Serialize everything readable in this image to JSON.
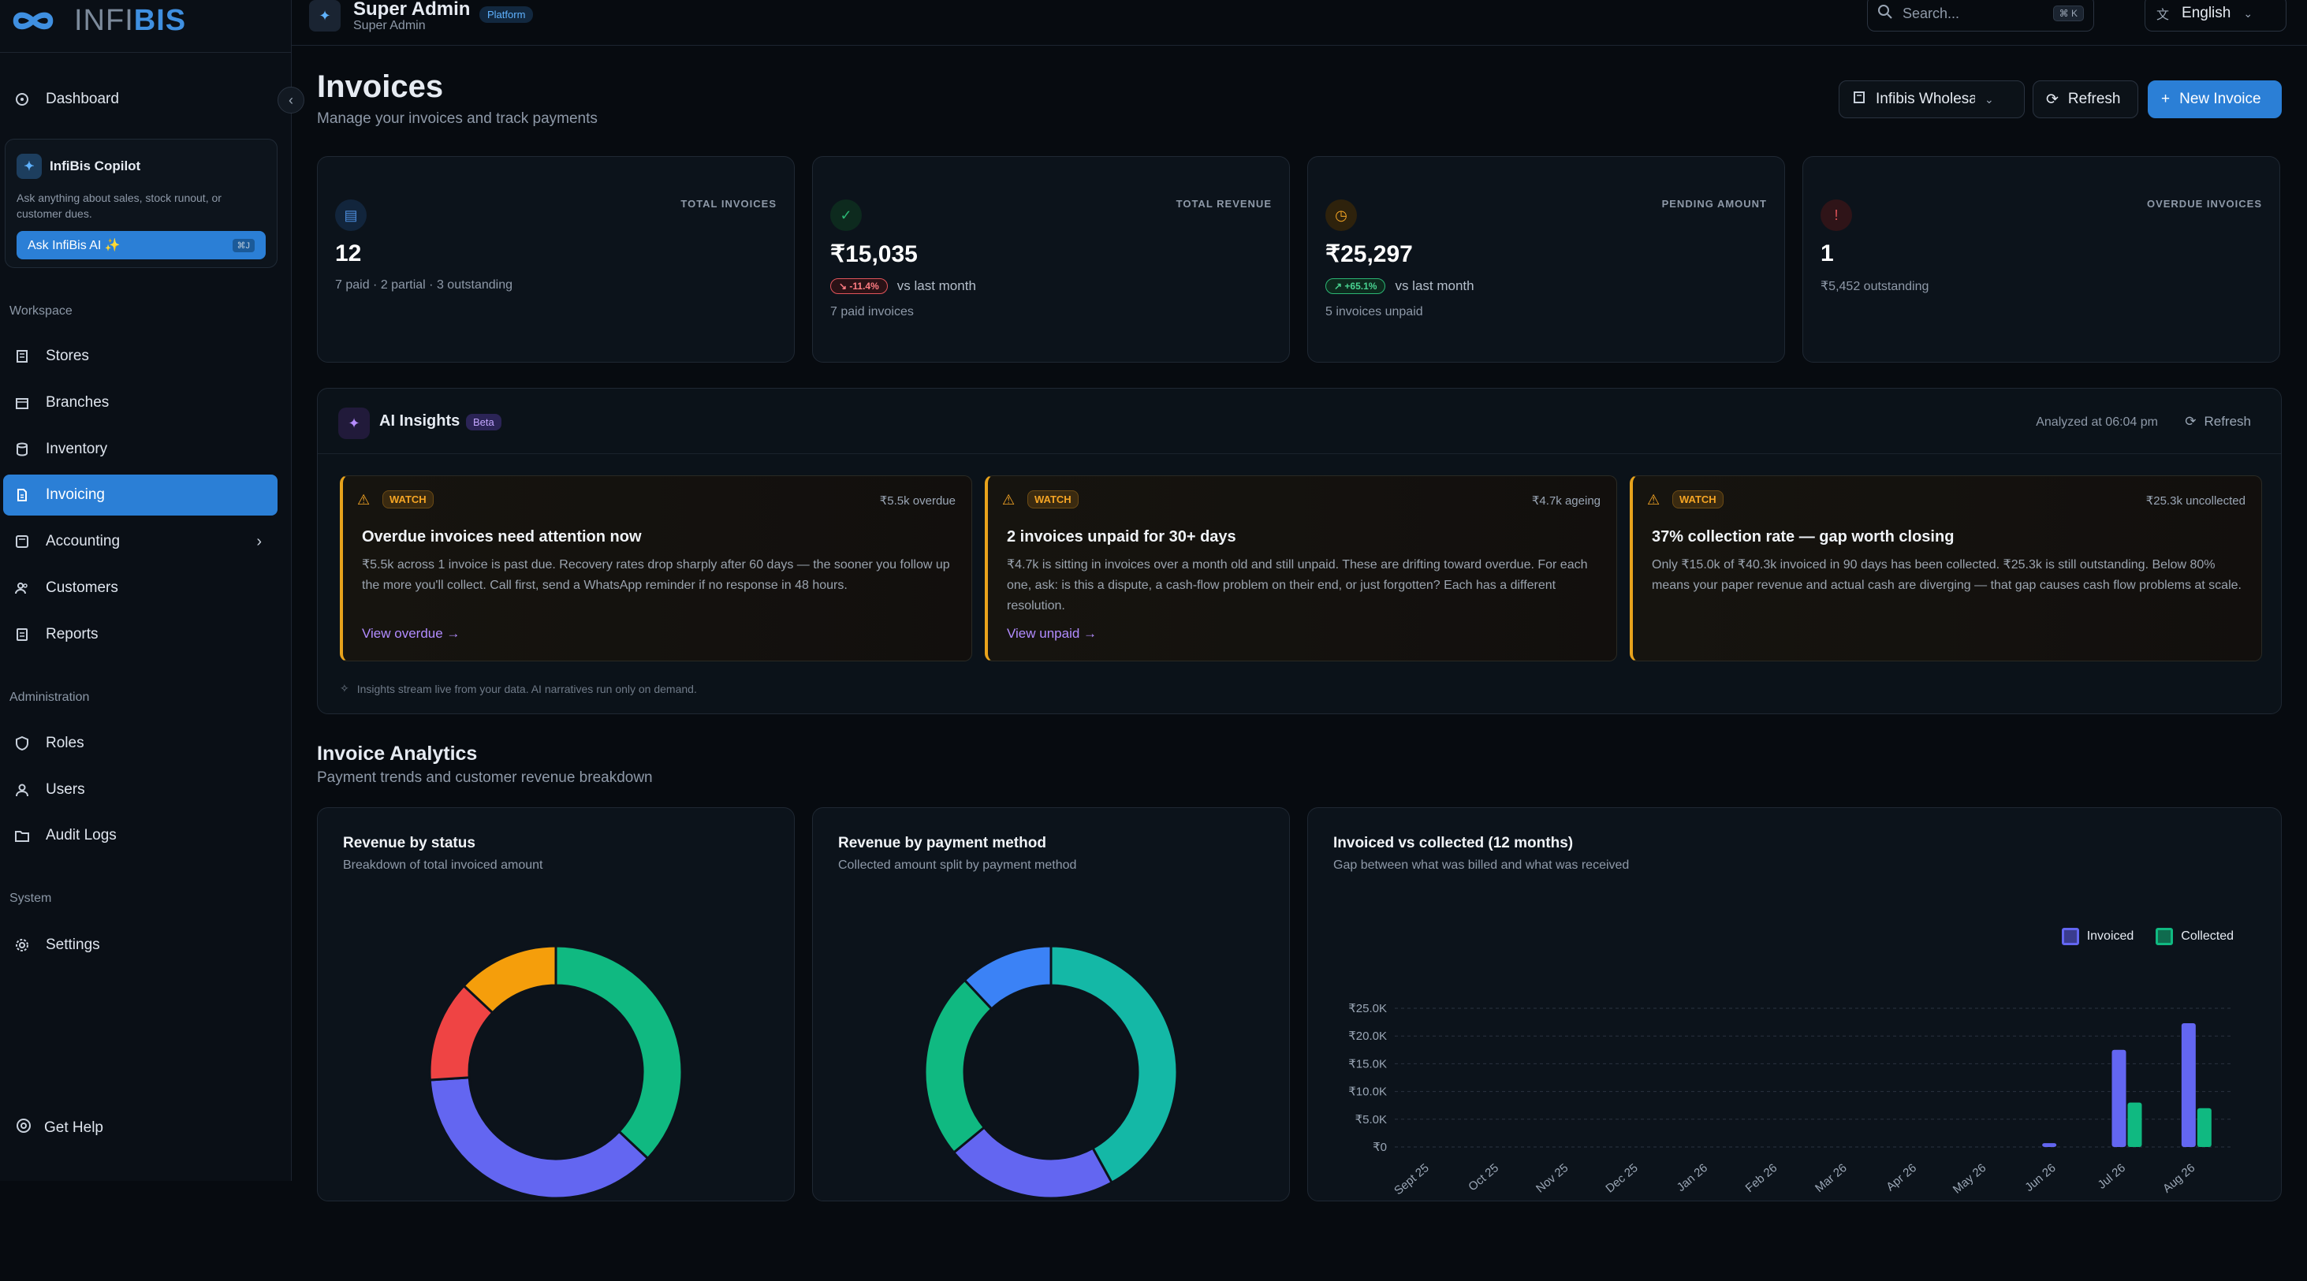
{
  "brand": {
    "logo_main": "INFI",
    "logo_accent": "BIS"
  },
  "topbar": {
    "user_name": "Super Admin",
    "user_role": "Super Admin",
    "badge": "Platform",
    "search_placeholder": "Search...",
    "search_shortcut": "⌘ K",
    "language": "English"
  },
  "sidebar": {
    "dashboard": "Dashboard",
    "copilot": {
      "title": "InfiBis Copilot",
      "desc": "Ask anything about sales, stock runout, or customer dues.",
      "button": "Ask InfiBis AI ✨",
      "shortcut": "⌘J"
    },
    "workspace_label": "Workspace",
    "items": [
      "Stores",
      "Branches",
      "Inventory",
      "Invoicing",
      "Accounting",
      "Customers",
      "Reports"
    ],
    "admin_label": "Administration",
    "admin_items": [
      "Roles",
      "Users",
      "Audit Logs"
    ],
    "system_label": "System",
    "system_items": [
      "Settings"
    ],
    "help": "Get Help"
  },
  "page": {
    "title": "Invoices",
    "subtitle": "Manage your invoices and track payments",
    "store_select": "Infibis Wholesa",
    "refresh": "Refresh",
    "new_invoice": "New Invoice"
  },
  "stats": [
    {
      "label": "TOTAL INVOICES",
      "value": "12",
      "sub": "7 paid · 2 partial · 3 outstanding",
      "color": "#4d8fe0"
    },
    {
      "label": "TOTAL REVENUE",
      "value": "₹15,035",
      "trend": "-11.4%",
      "trend_text": "vs last month",
      "sub": "7 paid invoices",
      "color": "#2bb573"
    },
    {
      "label": "PENDING AMOUNT",
      "value": "₹25,297",
      "trend": "+65.1%",
      "trend_text": "vs last month",
      "sub": "5 invoices unpaid",
      "color": "#f5a524"
    },
    {
      "label": "OVERDUE INVOICES",
      "value": "1",
      "sub": "₹5,452 outstanding",
      "color": "#e0535a"
    }
  ],
  "ai": {
    "title": "AI Insights",
    "beta": "Beta",
    "analyzed": "Analyzed at 06:04 pm",
    "refresh": "Refresh",
    "insights": [
      {
        "tag": "WATCH",
        "amount": "₹5.5k overdue",
        "title": "Overdue invoices need attention now",
        "text": "₹5.5k across 1 invoice is past due. Recovery rates drop sharply after 60 days — the sooner you follow up the more you'll collect. Call first, send a WhatsApp reminder if no response in 48 hours.",
        "link": "View overdue →"
      },
      {
        "tag": "WATCH",
        "amount": "₹4.7k ageing",
        "title": "2 invoices unpaid for 30+ days",
        "text": "₹4.7k is sitting in invoices over a month old and still unpaid. These are drifting toward overdue. For each one, ask: is this a dispute, a cash-flow problem on their end, or just forgotten? Each has a different resolution.",
        "link": "View unpaid →"
      },
      {
        "tag": "WATCH",
        "amount": "₹25.3k uncollected",
        "title": "37% collection rate — gap worth closing",
        "text": "Only ₹15.0k of ₹40.3k invoiced in 90 days has been collected. ₹25.3k is still outstanding. Below 80% means your paper revenue and actual cash are diverging — that gap causes cash flow problems at scale.",
        "link": ""
      }
    ],
    "footer": "Insights stream live from your data. AI narratives run only on demand."
  },
  "analytics": {
    "title": "Invoice Analytics",
    "subtitle": "Payment trends and customer revenue breakdown"
  },
  "charts": {
    "status": {
      "title": "Revenue by status",
      "sub": "Breakdown of total invoiced amount"
    },
    "method": {
      "title": "Revenue by payment method",
      "sub": "Collected amount split by payment method"
    },
    "trend": {
      "title": "Invoiced vs collected (12 months)",
      "sub": "Gap between what was billed and what was received"
    }
  },
  "chart_data": [
    {
      "type": "pie",
      "title": "Revenue by status",
      "slices": [
        {
          "value": 37,
          "color": "#10b981"
        },
        {
          "value": 37,
          "color": "#6366f1"
        },
        {
          "value": 13,
          "color": "#ef4444"
        },
        {
          "value": 13,
          "color": "#f59e0b"
        }
      ]
    },
    {
      "type": "pie",
      "title": "Revenue by payment method",
      "slices": [
        {
          "value": 42,
          "color": "#14b8a6"
        },
        {
          "value": 22,
          "color": "#6366f1"
        },
        {
          "value": 24,
          "color": "#10b981"
        },
        {
          "value": 12,
          "color": "#3b82f6"
        }
      ]
    },
    {
      "type": "bar",
      "title": "Invoiced vs collected (12 months)",
      "categories": [
        "Sept 25",
        "Oct 25",
        "Nov 25",
        "Dec 25",
        "Jan 26",
        "Feb 26",
        "Mar 26",
        "Apr 26",
        "May 26",
        "Jun 26",
        "Jul 26",
        "Aug 26"
      ],
      "series": [
        {
          "name": "Invoiced",
          "color": "#6366f1",
          "values": [
            0,
            0,
            0,
            0,
            0,
            0,
            0,
            0,
            0,
            700,
            17500,
            22300
          ]
        },
        {
          "name": "Collected",
          "color": "#10b981",
          "values": [
            0,
            0,
            0,
            0,
            0,
            0,
            0,
            0,
            0,
            0,
            8000,
            7000
          ]
        }
      ],
      "yticks": [
        "₹0",
        "₹5.0K",
        "₹10.0K",
        "₹15.0K",
        "₹20.0K",
        "₹25.0K"
      ],
      "ylim": [
        0,
        25000
      ]
    }
  ]
}
